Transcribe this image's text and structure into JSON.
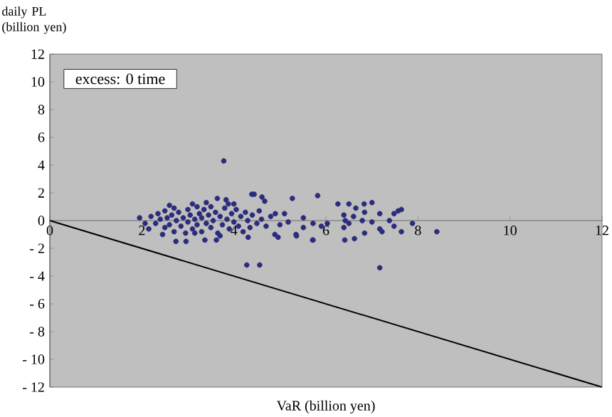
{
  "chart_data": {
    "type": "scatter",
    "ylabel": "daily PL (billion yen)",
    "xlabel": "VaR (billion yen)",
    "annotations": [
      "excess: 0 time"
    ],
    "xlim": [
      0,
      12
    ],
    "xticks": [
      0,
      2,
      4,
      6,
      8,
      10,
      12
    ],
    "ylim": [
      -12,
      12
    ],
    "yticks": [
      {
        "value": -12,
        "label": "- 12"
      },
      {
        "value": -10,
        "label": "- 10"
      },
      {
        "value": -8,
        "label": "- 8"
      },
      {
        "value": -6,
        "label": "- 6"
      },
      {
        "value": -4,
        "label": "- 4"
      },
      {
        "value": -2,
        "label": "- 2"
      },
      0,
      2,
      4,
      6,
      8,
      10,
      12
    ],
    "grid": false,
    "series": [
      {
        "marker": "circle",
        "color": "#2b2d7c",
        "x": [
          3.78,
          4.28,
          4.56,
          4.39,
          4.44,
          4.61,
          4.67,
          5.27,
          5.82,
          3.64,
          3.83,
          3.88,
          2.74,
          2.96,
          3.37,
          3.62,
          3.15,
          4.31,
          4.89,
          4.96,
          5.35,
          5.71,
          5.51,
          1.95,
          2.07,
          6.26,
          6.5,
          6.65,
          6.83,
          7.0,
          6.84,
          6.39,
          6.6,
          7.17,
          7.48,
          7.64,
          7.57,
          6.39,
          6.5,
          6.42,
          6.79,
          7.0,
          7.38,
          7.48,
          7.64,
          7.88,
          8.41,
          7.17,
          7.22,
          6.84,
          6.41,
          6.62,
          5.72,
          5.36,
          5.51,
          5.72,
          5.9,
          6.03,
          5.18,
          5.1,
          7.17,
          2.2,
          2.3,
          2.35,
          2.4,
          2.5,
          2.5,
          2.55,
          2.6,
          2.65,
          2.7,
          2.7,
          2.75,
          2.8,
          2.85,
          2.9,
          2.95,
          3.0,
          3.0,
          3.05,
          3.1,
          3.15,
          3.2,
          3.2,
          3.25,
          3.3,
          3.3,
          3.35,
          3.4,
          3.45,
          3.5,
          3.5,
          3.55,
          3.6,
          3.65,
          3.7,
          3.75,
          3.8,
          3.85,
          3.9,
          3.95,
          4.0,
          4.05,
          4.1,
          4.15,
          4.2,
          4.25,
          4.3,
          4.35,
          4.4,
          4.5,
          4.55,
          4.6,
          4.7,
          4.8,
          4.9,
          5.0,
          2.15,
          2.45,
          2.6,
          3.1,
          3.4,
          3.7,
          4.0
        ],
        "values": [
          4.3,
          -3.2,
          -3.2,
          1.9,
          1.9,
          1.7,
          1.4,
          1.6,
          1.8,
          1.6,
          1.5,
          1.2,
          -1.5,
          -1.5,
          -1.4,
          -1.4,
          -0.9,
          -1.2,
          -1.0,
          -1.2,
          -1.0,
          -1.4,
          -0.5,
          0.2,
          -0.2,
          1.2,
          1.2,
          0.9,
          1.2,
          1.3,
          0.6,
          0.4,
          0.3,
          0.5,
          0.5,
          0.8,
          0.7,
          -0.5,
          -0.2,
          0.0,
          0.0,
          -0.1,
          0.0,
          -0.4,
          -0.8,
          -0.2,
          -0.8,
          -0.6,
          -0.8,
          -0.9,
          -1.4,
          -1.3,
          -1.4,
          -1.1,
          0.2,
          -0.2,
          -0.4,
          -0.2,
          -0.1,
          0.5,
          -3.4,
          0.3,
          -0.2,
          0.5,
          0.1,
          -0.5,
          0.7,
          0.2,
          -0.3,
          0.4,
          -0.8,
          0.9,
          0.0,
          0.6,
          -0.4,
          0.2,
          -0.9,
          0.8,
          -0.1,
          0.4,
          -0.6,
          0.1,
          1.0,
          -0.3,
          0.5,
          -0.8,
          0.2,
          0.8,
          -0.2,
          0.4,
          -0.5,
          1.0,
          0.0,
          0.6,
          -0.9,
          0.3,
          -0.3,
          0.9,
          0.1,
          -0.6,
          0.5,
          -0.1,
          0.8,
          -0.4,
          0.3,
          -0.8,
          0.6,
          0.0,
          -0.5,
          0.4,
          -0.2,
          0.7,
          0.1,
          -0.4,
          0.3,
          0.5,
          -0.3,
          -0.6,
          -1.0,
          1.1,
          1.2,
          1.3,
          -1.1,
          1.2
        ]
      },
      {
        "type": "line",
        "marker": "none",
        "color": "#000000",
        "x": [
          0,
          12
        ],
        "values": [
          0,
          -12
        ]
      }
    ]
  }
}
